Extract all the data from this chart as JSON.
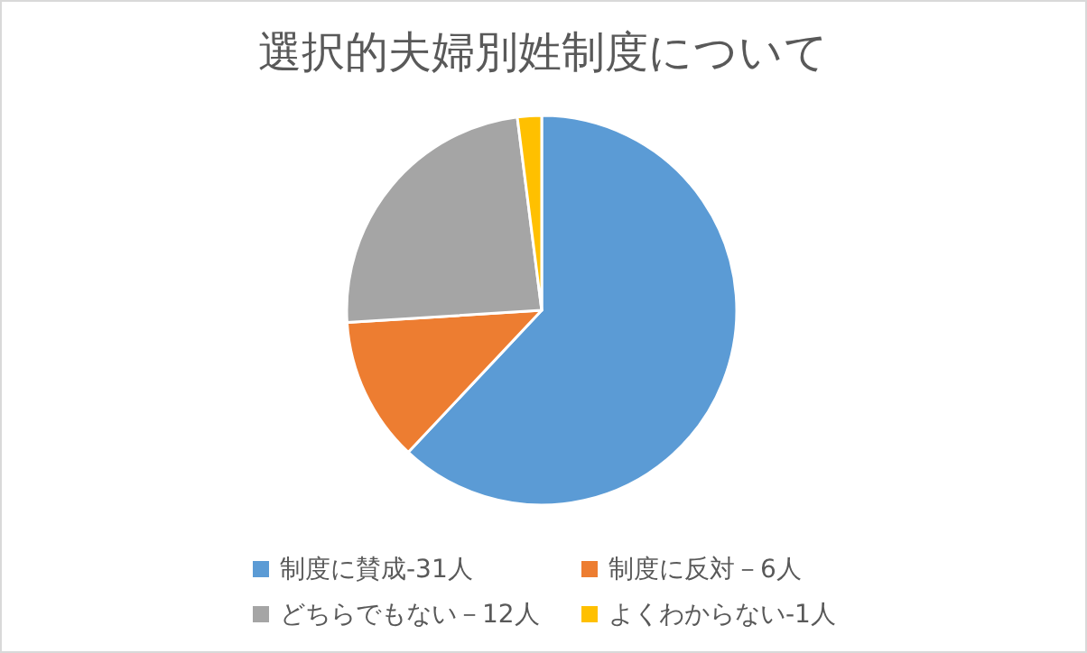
{
  "chart_data": {
    "type": "pie",
    "title": "選択的夫婦別姓制度について",
    "categories": [
      "制度に賛成-31人",
      "制度に反対－6人",
      "どちらでもない－12人",
      "よくわからない-1人"
    ],
    "values": [
      31,
      6,
      12,
      1
    ],
    "colors": [
      "#5b9bd5",
      "#ed7d31",
      "#a5a5a5",
      "#ffc000"
    ],
    "legend": "bottom"
  }
}
